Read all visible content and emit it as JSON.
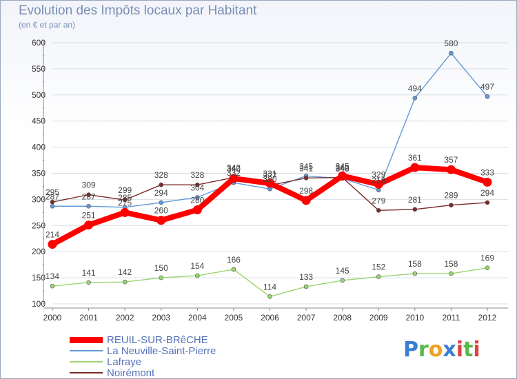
{
  "header": {
    "title": "Evolution des Impôts locaux par Habitant",
    "subtitle": "(en € et par an)"
  },
  "logo": {
    "text": "Proxiti"
  },
  "chart_data": {
    "type": "line",
    "title": "Evolution des Impôts locaux par Habitant",
    "subtitle": "(en € et par an)",
    "categories": [
      "2000",
      "2001",
      "2002",
      "2003",
      "2004",
      "2005",
      "2006",
      "2007",
      "2008",
      "2009",
      "2010",
      "2011",
      "2012"
    ],
    "ylim": [
      100,
      600
    ],
    "yticks": [
      100,
      150,
      200,
      250,
      300,
      350,
      400,
      450,
      500,
      550,
      600
    ],
    "legend_position": "bottom-left",
    "series": [
      {
        "name": "REUIL-SUR-BRêCHE",
        "color": "#ff0000",
        "emphasis": true,
        "values": [
          214,
          251,
          275,
          260,
          280,
          340,
          331,
          298,
          345,
          329,
          361,
          357,
          333
        ]
      },
      {
        "name": "La Neuville-Saint-Pierre",
        "color": "#5f9ad8",
        "emphasis": false,
        "values": [
          287,
          287,
          285,
          294,
          304,
          332,
          320,
          345,
          340,
          318,
          494,
          580,
          497
        ]
      },
      {
        "name": "Lafraye",
        "color": "#99d570",
        "emphasis": false,
        "values": [
          134,
          141,
          142,
          150,
          154,
          166,
          114,
          133,
          145,
          152,
          158,
          158,
          169
        ]
      },
      {
        "name": "Noirémont",
        "color": "#7a2a2a",
        "emphasis": false,
        "values": [
          295,
          309,
          299,
          328,
          328,
          342,
          327,
          341,
          342,
          279,
          281,
          289,
          294
        ]
      }
    ]
  }
}
